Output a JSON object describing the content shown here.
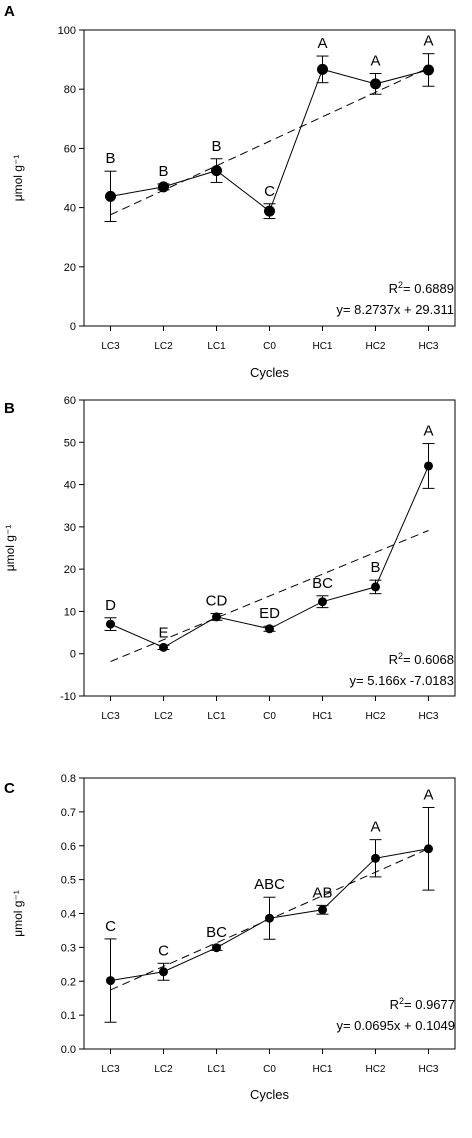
{
  "chart_data": [
    {
      "panel": "A",
      "type": "line",
      "xlabel": "Cycles",
      "ylabel": "μmol g⁻¹",
      "ylim": [
        0,
        100
      ],
      "yticks": [
        0,
        20,
        40,
        60,
        80,
        100
      ],
      "categories": [
        "LC3",
        "LC2",
        "LC1",
        "C0",
        "HC1",
        "HC2",
        "HC3"
      ],
      "values": [
        43.8,
        47.0,
        52.5,
        38.8,
        86.7,
        81.8,
        86.5
      ],
      "errors": [
        8.5,
        1.0,
        4.0,
        2.5,
        4.5,
        3.5,
        5.5
      ],
      "letters": [
        "B",
        "B",
        "B",
        "C",
        "A",
        "A",
        "A"
      ],
      "trend": {
        "slope": 8.2737,
        "intercept": 29.311
      },
      "r2_prefix": "R",
      "r2_sup": "2",
      "r2_value": "= 0.6889",
      "equation": "y= 8.2737x + 29.311"
    },
    {
      "panel": "B",
      "type": "line",
      "xlabel": "",
      "ylabel": "μmol g⁻¹",
      "ylim": [
        -10,
        60
      ],
      "yticks": [
        -10,
        0,
        10,
        20,
        30,
        40,
        50,
        60
      ],
      "categories": [
        "LC3",
        "LC2",
        "LC1",
        "C0",
        "HC1",
        "HC2",
        "HC3"
      ],
      "values": [
        7.0,
        1.5,
        8.7,
        5.9,
        12.3,
        15.8,
        44.4
      ],
      "errors": [
        1.5,
        0.5,
        0.8,
        0.6,
        1.4,
        1.6,
        5.3
      ],
      "letters": [
        "D",
        "E",
        "CD",
        "ED",
        "BC",
        "B",
        "A"
      ],
      "trend": {
        "slope": 5.166,
        "intercept": -7.0183
      },
      "r2_prefix": "R",
      "r2_sup": "2",
      "r2_value": "= 0.6068",
      "equation": "y= 5.166x -7.0183"
    },
    {
      "panel": "C",
      "type": "line",
      "xlabel": "Cycles",
      "ylabel": "μmol g⁻¹",
      "ylim": [
        0,
        0.8
      ],
      "yticks": [
        "0.0",
        "0.1",
        "0.2",
        "0.3",
        "0.4",
        "0.5",
        "0.6",
        "0.7",
        "0.8"
      ],
      "categories": [
        "LC3",
        "LC2",
        "LC1",
        "C0",
        "HC1",
        "HC2",
        "HC3"
      ],
      "values": [
        0.202,
        0.228,
        0.299,
        0.386,
        0.411,
        0.563,
        0.591
      ],
      "errors": [
        0.123,
        0.025,
        0.008,
        0.062,
        0.013,
        0.055,
        0.122
      ],
      "letters": [
        "C",
        "C",
        "BC",
        "ABC",
        "AB",
        "A",
        "A"
      ],
      "trend": {
        "slope": 0.0695,
        "intercept": 0.1049
      },
      "r2_prefix": "R",
      "r2_sup": "2",
      "r2_value": "= 0.9677",
      "equation": "y= 0.0695x + 0.1049"
    }
  ]
}
